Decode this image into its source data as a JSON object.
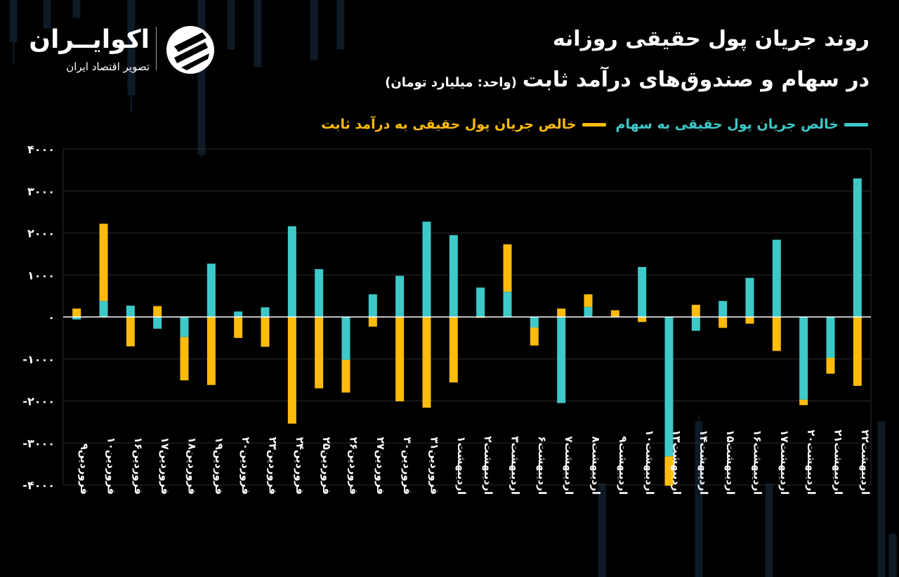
{
  "header": {
    "title_line1": "روند جریان پول حقیقی روزانه",
    "title_line2": "در سهام و صندوق‌های درآمد ثابت",
    "unit": "(واحد: میلیارد تومان)"
  },
  "logo": {
    "name": "اکوایــران",
    "tagline": "تصویر اقتصاد ایران"
  },
  "colors": {
    "stocks": "#3ec9c9",
    "fixed_income": "#fdbb0b",
    "grid": "#2c2c2c",
    "axis": "#ffffff"
  },
  "chart_data": {
    "type": "bar",
    "stacking": "stacked",
    "legend_position": "top-right",
    "grid": true,
    "ylim": [
      -4000,
      4000
    ],
    "yticks": [
      4000,
      3000,
      2000,
      1000,
      0,
      -1000,
      -2000,
      -3000,
      -4000
    ],
    "ytick_labels": [
      "۴۰۰۰",
      "۳۰۰۰",
      "۲۰۰۰",
      "۱۰۰۰",
      "۰",
      "-۱۰۰۰",
      "-۲۰۰۰",
      "-۳۰۰۰",
      "-۴۰۰۰"
    ],
    "categories": [
      "فروردین۹",
      "فروردین۱۰",
      "فروردین۱۶",
      "فروردین۱۷",
      "فروردین۱۸",
      "فروردین۱۹",
      "فروردین۲۰",
      "فروردین۲۳",
      "فروردین۲۴",
      "فروردین۲۵",
      "فروردین۲۶",
      "فروردین۲۷",
      "فروردین۳۰",
      "فروردین۳۱",
      "اردیبهشت۱",
      "اردیبهشت۲",
      "اردیبهشت۳",
      "اردیبهشت۶",
      "اردیبهشت۷",
      "اردیبهشت۸",
      "اردیبهشت۹",
      "اردیبهشت۱۰",
      "اردیبهشت۱۳",
      "اردیبهشت۱۴",
      "اردیبهشت۱۵",
      "اردیبهشت۱۶",
      "اردیبهشت۱۷",
      "اردیبهشت۲۰",
      "اردیبهشت۲۱",
      "اردیبهشت۲۲"
    ],
    "series": [
      {
        "name": "خالص جریان پول حقیقی به سهام",
        "values": [
          -60,
          380,
          270,
          -280,
          -480,
          1270,
          130,
          230,
          2160,
          1140,
          -1020,
          540,
          980,
          2270,
          1950,
          700,
          600,
          -250,
          -2050,
          240,
          -10,
          1190,
          -3320,
          -330,
          380,
          930,
          1840,
          -1970,
          -970,
          3300
        ]
      },
      {
        "name": "خالص جریان پول حقیقی به درآمد ثابت",
        "values": [
          200,
          1840,
          -700,
          260,
          -1030,
          -1620,
          -500,
          -710,
          -2540,
          -1700,
          -780,
          -230,
          -2010,
          -2160,
          -1560,
          -20,
          1130,
          -430,
          200,
          300,
          160,
          -120,
          -700,
          290,
          -260,
          -160,
          -810,
          -130,
          -380,
          -1640
        ]
      }
    ]
  },
  "x_axis_labels": [
    "فروردین۹",
    "فروردین۱۰",
    "فروردین۱۶",
    "فروردین۱۷",
    "فروردین۱۸",
    "فروردین۱۹",
    "فروردین۲۰",
    "فروردین۲۳",
    "فروردین۲۴",
    "فروردین۲۵",
    "فروردین۲۶",
    "فروردین۲۷",
    "فروردین۳۰",
    "فروردین۳۱",
    "اردیبهشت۱",
    "اردیبهشت۲",
    "اردیبهشت۳",
    "اردیبهشت۶",
    "اردیبهشت۷",
    "اردیبهشت۸",
    "اردیبهشت۹",
    "اردیبهشت۱۰",
    "اردیبهشت۱۳",
    "اردیبهشت۱۴",
    "اردیبهشت۱۵",
    "اردیبهشت۱۶",
    "اردیبهشت۱۷",
    "اردیبهشت۲۰",
    "اردیبهشت۲۱",
    "اردیبهشت۲۲"
  ]
}
